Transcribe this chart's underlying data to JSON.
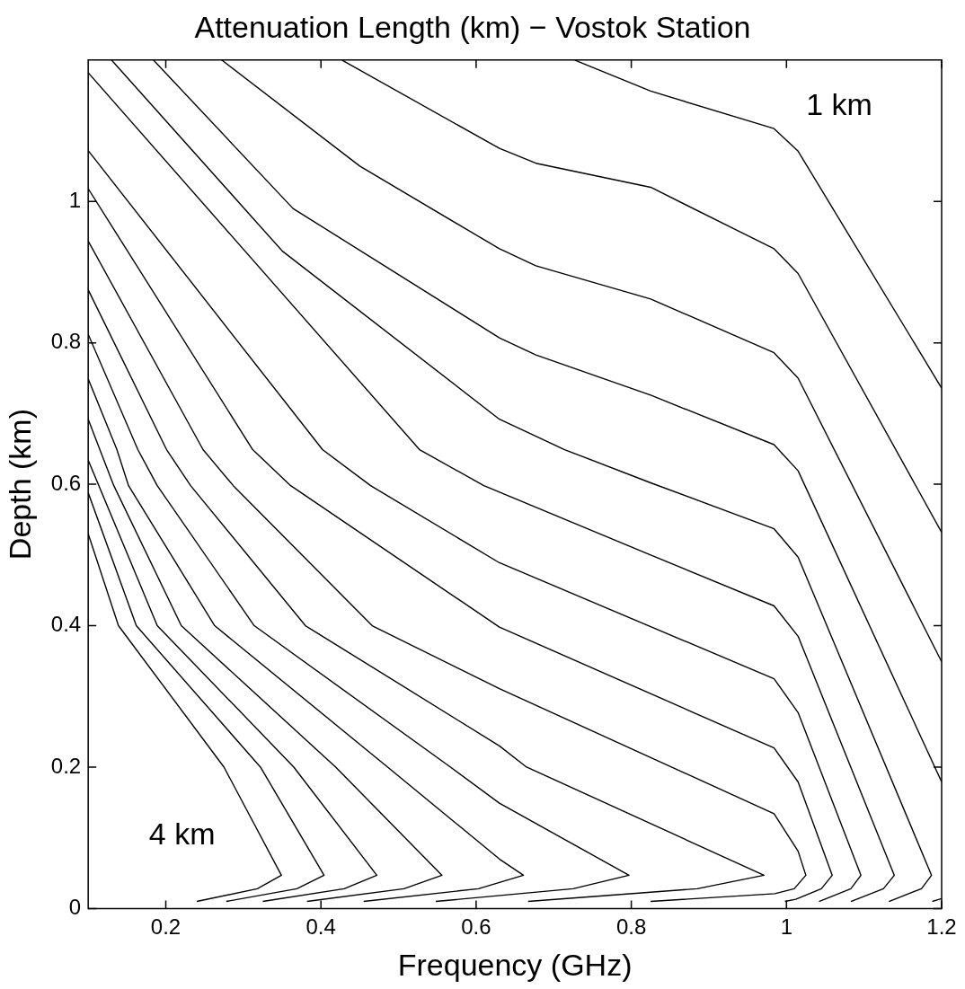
{
  "chart_data": {
    "type": "line",
    "title": "Attenuation Length (km) − Vostok Station",
    "xlabel": "Frequency (GHz)",
    "ylabel": "Depth (km)",
    "xlim": [
      0.1,
      1.2
    ],
    "ylim": [
      0,
      1.2
    ],
    "xticks": [
      0.2,
      0.4,
      0.6,
      0.8,
      1,
      1.2
    ],
    "yticks": [
      0,
      0.2,
      0.4,
      0.6,
      0.8,
      1
    ],
    "grid": false,
    "legend": false,
    "marker": "none",
    "line_style": "solid",
    "annotations": [
      "1 km",
      "4 km"
    ],
    "series": [
      {
        "color": "#000000",
        "x": [
          0.1,
          0.139,
          0.275,
          0.349,
          0.318,
          0.24
        ],
        "values": [
          0.53,
          0.4,
          0.2,
          0.047,
          0.028,
          0.01
        ]
      },
      {
        "color": "#000000",
        "x": [
          0.1,
          0.162,
          0.322,
          0.404,
          0.369,
          0.278
        ],
        "values": [
          0.588,
          0.4,
          0.2,
          0.047,
          0.028,
          0.01
        ]
      },
      {
        "color": "#000000",
        "x": [
          0.1,
          0.189,
          0.365,
          0.472,
          0.43,
          0.325
        ],
        "values": [
          0.634,
          0.4,
          0.2,
          0.047,
          0.028,
          0.01
        ]
      },
      {
        "color": "#000000",
        "x": [
          0.1,
          0.115,
          0.133,
          0.22,
          0.419,
          0.556,
          0.507,
          0.382
        ],
        "values": [
          0.692,
          0.649,
          0.598,
          0.4,
          0.2,
          0.047,
          0.028,
          0.01
        ]
      },
      {
        "color": "#000000",
        "x": [
          0.1,
          0.137,
          0.152,
          0.263,
          0.486,
          0.63,
          0.661,
          0.603,
          0.455
        ],
        "values": [
          0.749,
          0.649,
          0.598,
          0.4,
          0.2,
          0.07,
          0.047,
          0.028,
          0.01
        ]
      },
      {
        "color": "#000000",
        "x": [
          0.1,
          0.164,
          0.189,
          0.314,
          0.567,
          0.63,
          0.797,
          0.725,
          0.548
        ],
        "values": [
          0.812,
          0.649,
          0.598,
          0.4,
          0.2,
          0.149,
          0.047,
          0.028,
          0.01
        ]
      },
      {
        "color": "#000000",
        "x": [
          0.1,
          0.201,
          0.232,
          0.38,
          0.63,
          0.665,
          0.971,
          0.885,
          0.667
        ],
        "values": [
          0.875,
          0.649,
          0.598,
          0.4,
          0.23,
          0.2,
          0.047,
          0.028,
          0.01
        ]
      },
      {
        "color": "#000000",
        "x": [
          0.1,
          0.248,
          0.287,
          0.466,
          0.63,
          0.984,
          1.015,
          1.025,
          1.01,
          0.985,
          0.825
        ],
        "values": [
          0.944,
          0.649,
          0.598,
          0.4,
          0.311,
          0.134,
          0.081,
          0.047,
          0.028,
          0.021,
          0.01
        ]
      },
      {
        "color": "#000000",
        "x": [
          0.1,
          0.312,
          0.361,
          0.63,
          0.984,
          1.015,
          1.059,
          1.045,
          1.012,
          0.998
        ],
        "values": [
          1.018,
          0.649,
          0.598,
          0.398,
          0.227,
          0.179,
          0.047,
          0.028,
          0.013,
          0.01
        ]
      },
      {
        "color": "#000000",
        "x": [
          0.1,
          0.402,
          0.464,
          0.63,
          0.984,
          1.015,
          1.096,
          1.083,
          1.042
        ],
        "values": [
          1.072,
          0.649,
          0.598,
          0.489,
          0.325,
          0.277,
          0.047,
          0.028,
          0.01
        ]
      },
      {
        "color": "#000000",
        "x": [
          0.1,
          0.527,
          0.61,
          0.825,
          0.984,
          1.015,
          1.139,
          1.125,
          1.083
        ],
        "values": [
          1.182,
          0.649,
          0.598,
          0.5,
          0.428,
          0.385,
          0.047,
          0.028,
          0.01
        ]
      },
      {
        "color": "#000000",
        "x": [
          0.13,
          0.35,
          0.63,
          0.677,
          0.714,
          0.825,
          0.984,
          1.015,
          1.187,
          1.174,
          1.132
        ],
        "values": [
          1.2,
          0.93,
          0.692,
          0.668,
          0.649,
          0.602,
          0.537,
          0.497,
          0.047,
          0.028,
          0.01
        ]
      },
      {
        "color": "#000000",
        "x": [
          0.184,
          0.364,
          0.63,
          0.677,
          0.825,
          0.984,
          1.015,
          1.2
        ],
        "values": [
          1.2,
          0.99,
          0.807,
          0.783,
          0.726,
          0.656,
          0.619,
          0.179
        ]
      },
      {
        "color": "#000000",
        "x": [
          0.272,
          0.45,
          0.63,
          0.677,
          0.825,
          0.984,
          1.015,
          1.2
        ],
        "values": [
          1.2,
          1.05,
          0.933,
          0.909,
          0.862,
          0.786,
          0.75,
          0.349
        ]
      },
      {
        "color": "#000000",
        "x": [
          0.427,
          0.63,
          0.677,
          0.825,
          0.984,
          1.015,
          1.2
        ],
        "values": [
          1.2,
          1.075,
          1.054,
          1.02,
          0.933,
          0.898,
          0.532
        ]
      },
      {
        "color": "#000000",
        "x": [
          0.727,
          0.825,
          0.984,
          1.015,
          1.2
        ],
        "values": [
          1.2,
          1.156,
          1.103,
          1.071,
          0.736
        ]
      },
      {
        "color": "#000000",
        "x": [
          1.188,
          1.2
        ],
        "values": [
          0.01,
          0.014
        ]
      }
    ]
  }
}
